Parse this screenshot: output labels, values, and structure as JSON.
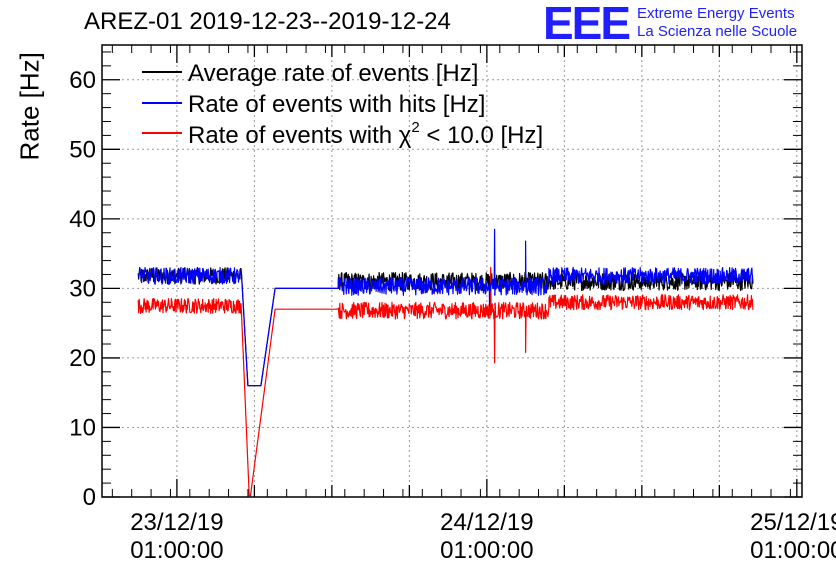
{
  "header": {
    "title": "AREZ-01 2019-12-23--2019-12-24",
    "logo_text": "EEE",
    "logo_line1": "Extreme Energy Events",
    "logo_line2": "La Scienza nelle Scuole"
  },
  "chart_data": {
    "type": "line",
    "title": "AREZ-01 2019-12-23--2019-12-24",
    "ylabel": "Rate [Hz]",
    "xlabel": "",
    "ylim": [
      0,
      65
    ],
    "xlim_hours": [
      -5.8,
      48.4
    ],
    "grid": true,
    "legend_position": "top-left",
    "y_ticks": [
      0,
      10,
      20,
      30,
      40,
      50,
      60
    ],
    "x_ticks": [
      {
        "hour": 0,
        "date": "23/12/19",
        "time": "01:00:00"
      },
      {
        "hour": 24,
        "date": "24/12/19",
        "time": "01:00:00"
      },
      {
        "hour": 48,
        "date": "25/12/19",
        "time": "01:00:00"
      }
    ],
    "series": [
      {
        "name": "Average rate of events [Hz]",
        "color": "#000000",
        "segments": [
          {
            "x": [
              -3,
              5
            ],
            "base": 31.8,
            "noise": 1.2
          },
          {
            "x": [
              5.5,
              6.5
            ],
            "base": 16.0
          },
          {
            "x": [
              7.6,
              12.5
            ],
            "base": 30.0
          },
          {
            "x": [
              12.5,
              44.6
            ],
            "base": 31.0,
            "noise": 1.3
          }
        ]
      },
      {
        "name": "Rate of events with hits [Hz]",
        "color": "#0000ff",
        "segments": [
          {
            "x": [
              -3,
              5
            ],
            "base": 31.8,
            "noise": 1.2
          },
          {
            "x": [
              5.5,
              6.5
            ],
            "base": 16.0
          },
          {
            "x": [
              7.6,
              12.5
            ],
            "base": 30.0
          },
          {
            "x": [
              12.5,
              28.8
            ],
            "base": 30.3,
            "noise": 1.3
          },
          {
            "x": [
              28.8,
              44.6
            ],
            "base": 31.8,
            "noise": 1.2
          }
        ],
        "spikes": [
          {
            "x": 24.6,
            "y": 38.5
          },
          {
            "x": 27.0,
            "y": 36.8
          },
          {
            "x": 24.2,
            "y": 27.5
          }
        ]
      },
      {
        "name": "Rate of events with χ² < 10.0 [Hz]",
        "color": "#ff0000",
        "segments": [
          {
            "x": [
              -3,
              5
            ],
            "base": 27.5,
            "noise": 1.1
          },
          {
            "x": [
              5.6,
              5.7
            ],
            "base": 0.2
          },
          {
            "x": [
              7.6,
              12.5
            ],
            "base": 27.0
          },
          {
            "x": [
              12.5,
              28.8
            ],
            "base": 26.8,
            "noise": 1.2
          },
          {
            "x": [
              28.8,
              44.6
            ],
            "base": 28.0,
            "noise": 1.1
          }
        ],
        "spikes": [
          {
            "x": 24.6,
            "y": 19.3
          },
          {
            "x": 27.0,
            "y": 20.8
          },
          {
            "x": 24.3,
            "y": 33.0
          }
        ]
      }
    ]
  },
  "legend": {
    "avg_label": "Average rate of events [Hz]",
    "hits_label": "Rate of events with hits [Hz]",
    "chi_prefix": "Rate of events with ",
    "chi_symbol": "χ",
    "chi_exp": "2",
    "chi_suffix": " < 10.0 [Hz]"
  }
}
